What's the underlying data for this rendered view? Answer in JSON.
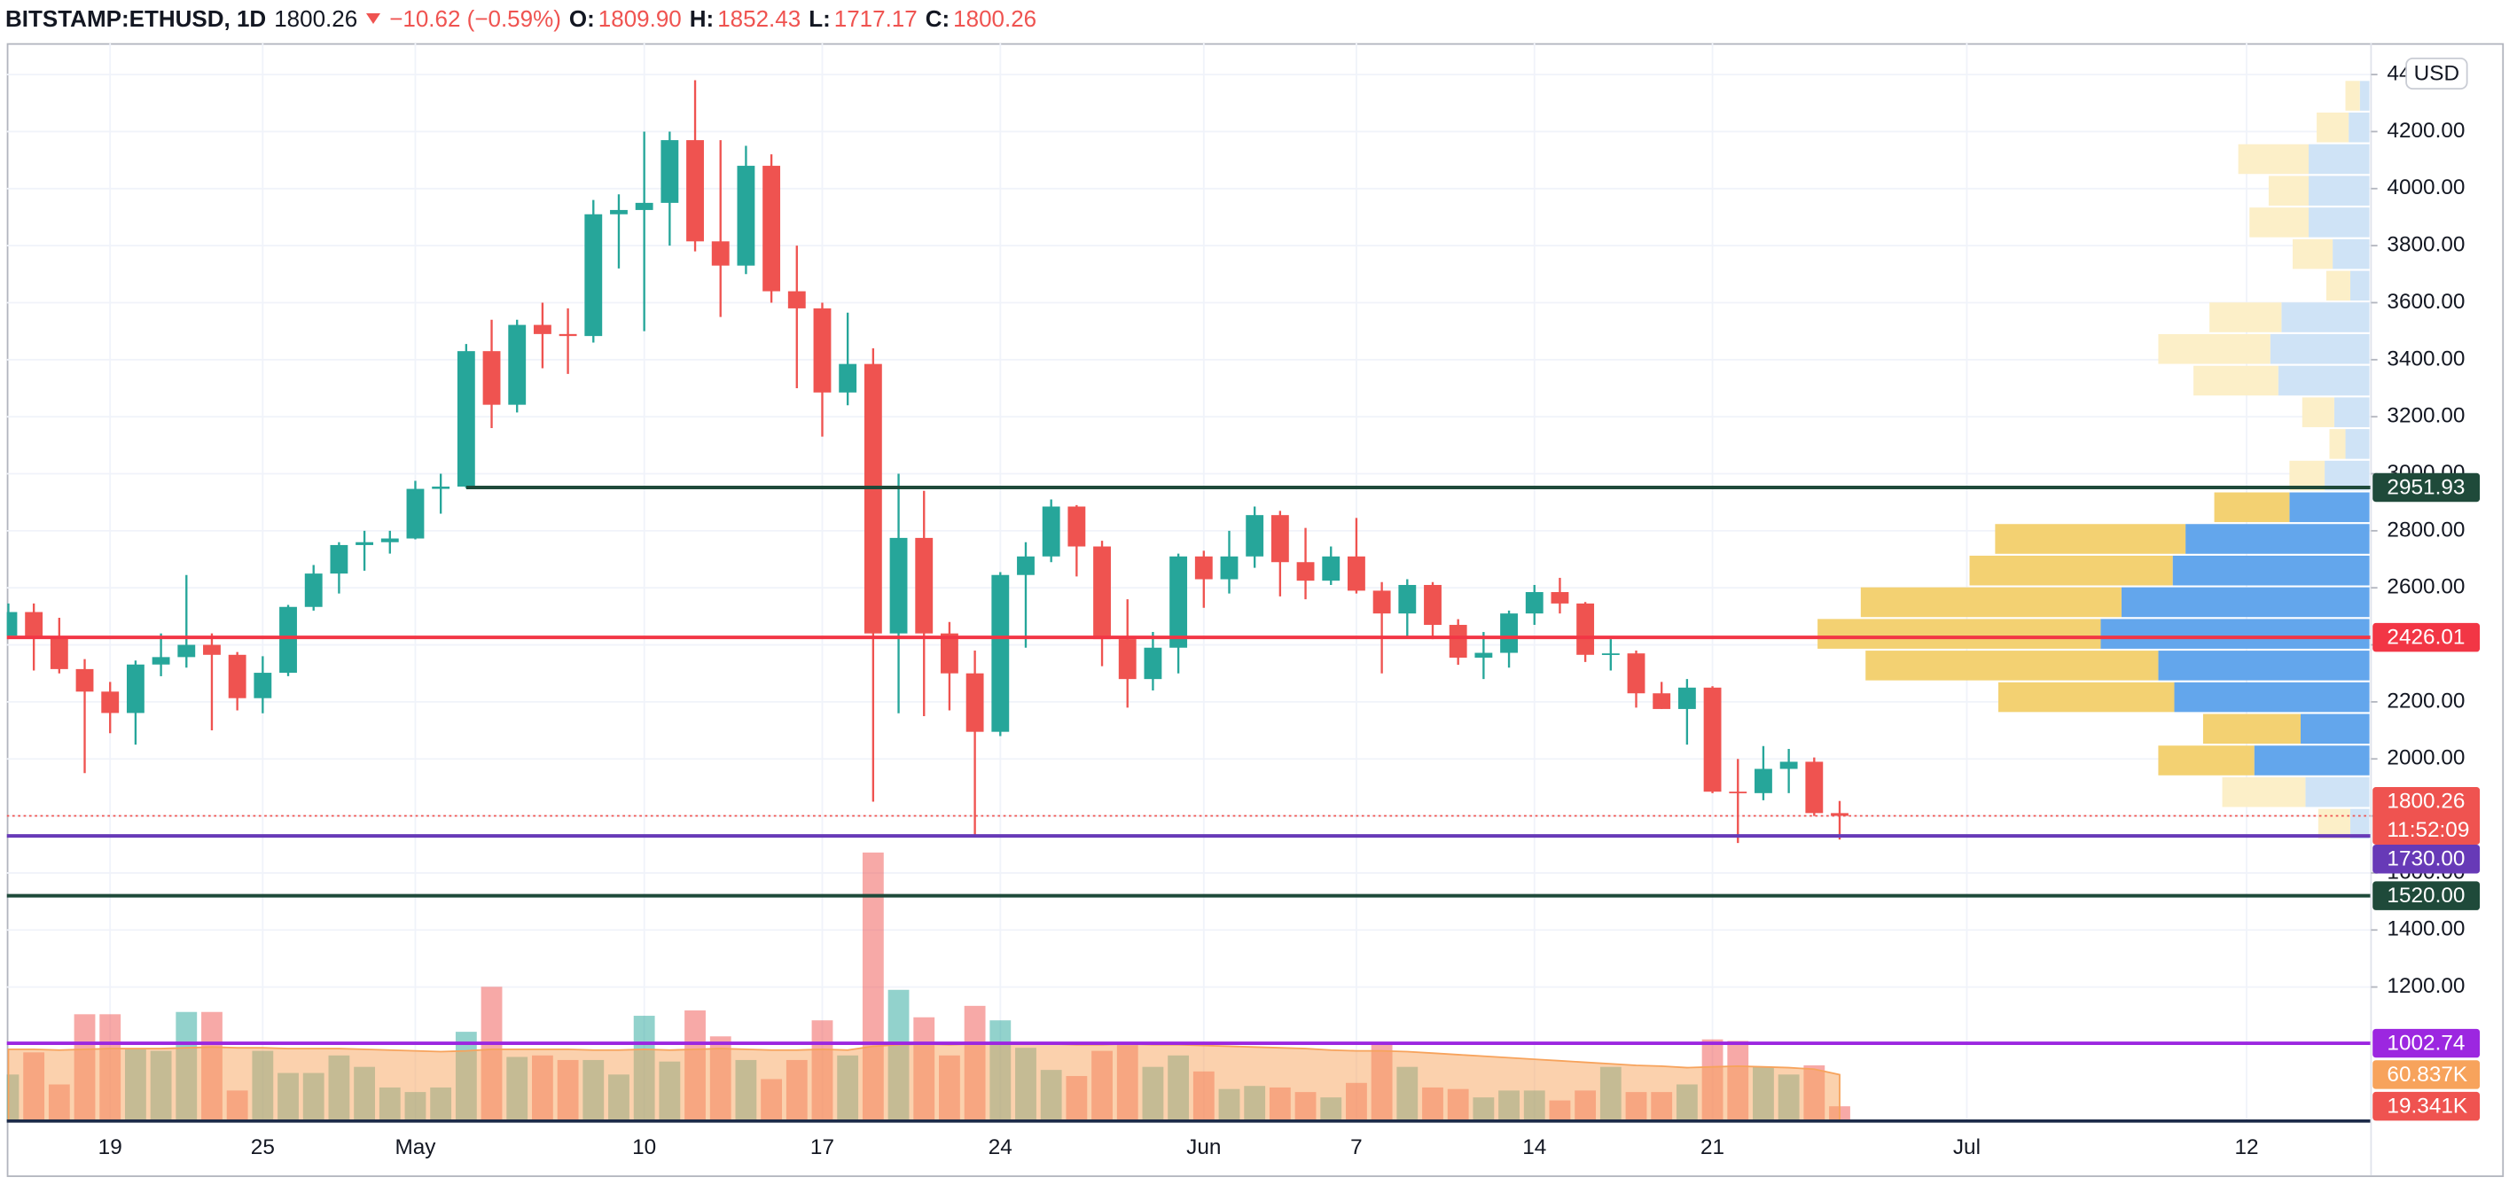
{
  "header": {
    "symbol": "BITSTAMP:ETHUSD, 1D",
    "last": "1800.26",
    "change": "−10.62 (−0.59%)",
    "ohlc": [
      {
        "label": "O:",
        "value": "1809.90"
      },
      {
        "label": "H:",
        "value": "1852.43"
      },
      {
        "label": "L:",
        "value": "1717.17"
      },
      {
        "label": "C:",
        "value": "1800.26"
      }
    ]
  },
  "chart_data": {
    "type": "candlestick",
    "categories": [
      null,
      null,
      null,
      null,
      "19",
      null,
      null,
      null,
      null,
      null,
      "25",
      null,
      null,
      null,
      null,
      null,
      "May",
      null,
      null,
      null,
      null,
      null,
      null,
      null,
      null,
      "10",
      null,
      null,
      null,
      null,
      null,
      null,
      "17",
      null,
      null,
      null,
      null,
      null,
      null,
      "24",
      null,
      null,
      null,
      null,
      null,
      null,
      null,
      "Jun",
      null,
      null,
      null,
      null,
      null,
      "7",
      null,
      null,
      null,
      null,
      null,
      null,
      "14",
      null,
      null,
      null,
      null,
      null,
      null,
      "21",
      null,
      null,
      null,
      null,
      null,
      null,
      null,
      null,
      null,
      "Jul",
      null,
      null,
      null,
      null,
      null,
      null,
      null,
      null,
      null,
      null,
      "12",
      null,
      null,
      null,
      null
    ],
    "open": [
      2432,
      2515,
      2422,
      2315,
      2236,
      2161,
      2331,
      2357,
      2400,
      2365,
      2213,
      2302,
      2533,
      2650,
      2750,
      2760,
      2773,
      2947,
      2955,
      3430,
      3242,
      3522,
      3490,
      3483,
      3910,
      3925,
      3950,
      4170,
      3815,
      3730,
      4080,
      3640,
      3580,
      3285,
      3385,
      2440,
      2775,
      2440,
      2300,
      2095,
      2645,
      2710,
      2885,
      2745,
      2420,
      2280,
      2390,
      2710,
      2630,
      2710,
      2855,
      2690,
      2625,
      2710,
      2590,
      2510,
      2610,
      2470,
      2355,
      2372,
      2510,
      2585,
      2545,
      2365,
      2370,
      2230,
      2175,
      2250,
      1885,
      1880,
      1965,
      1990,
      1809.9,
      null,
      null,
      null,
      null,
      null,
      null,
      null,
      null,
      null,
      null,
      null,
      null,
      null,
      null,
      null,
      null,
      null,
      null,
      null,
      null
    ],
    "high": [
      2545,
      2545,
      2495,
      2350,
      2270,
      2345,
      2440,
      2645,
      2440,
      2375,
      2360,
      2540,
      2680,
      2760,
      2800,
      2800,
      2975,
      3000,
      3455,
      3540,
      3540,
      3600,
      3580,
      3960,
      3980,
      4200,
      4200,
      4380,
      4170,
      4150,
      4120,
      3800,
      3600,
      3565,
      3440,
      3000,
      2940,
      2480,
      2380,
      2655,
      2760,
      2910,
      2890,
      2765,
      2560,
      2445,
      2720,
      2730,
      2800,
      2885,
      2870,
      2810,
      2745,
      2845,
      2620,
      2630,
      2620,
      2490,
      2445,
      2520,
      2610,
      2635,
      2550,
      2420,
      2380,
      2270,
      2280,
      2255,
      2000,
      2045,
      2035,
      2005,
      1852.43,
      null,
      null,
      null,
      null,
      null,
      null,
      null,
      null,
      null,
      null,
      null,
      null,
      null,
      null,
      null,
      null,
      null,
      null,
      null,
      null
    ],
    "low": [
      2420,
      2310,
      2300,
      1950,
      2090,
      2050,
      2290,
      2320,
      2100,
      2170,
      2160,
      2290,
      2520,
      2580,
      2660,
      2720,
      2770,
      2860,
      2950,
      3160,
      3215,
      3370,
      3350,
      3460,
      3720,
      3500,
      3800,
      3780,
      3550,
      3700,
      3600,
      3300,
      3130,
      3240,
      1850,
      2160,
      2150,
      2170,
      1730,
      2080,
      2390,
      2690,
      2640,
      2325,
      2180,
      2240,
      2300,
      2530,
      2580,
      2670,
      2570,
      2560,
      2610,
      2580,
      2300,
      2430,
      2420,
      2330,
      2280,
      2320,
      2470,
      2510,
      2340,
      2310,
      2180,
      2175,
      2050,
      1880,
      1705,
      1855,
      1880,
      1800,
      1717.17,
      null,
      null,
      null,
      null,
      null,
      null,
      null,
      null,
      null,
      null,
      null,
      null,
      null,
      null,
      null,
      null,
      null,
      null,
      null,
      null
    ],
    "close": [
      2515,
      2422,
      2315,
      2236,
      2161,
      2331,
      2357,
      2400,
      2365,
      2213,
      2302,
      2533,
      2650,
      2750,
      2760,
      2773,
      2947,
      2955,
      3430,
      3242,
      3522,
      3490,
      3483,
      3910,
      3925,
      3950,
      4170,
      3815,
      3730,
      4080,
      3640,
      3580,
      3285,
      3385,
      2440,
      2775,
      2440,
      2300,
      2095,
      2645,
      2710,
      2885,
      2745,
      2420,
      2280,
      2390,
      2710,
      2630,
      2710,
      2855,
      2690,
      2625,
      2710,
      2590,
      2510,
      2610,
      2470,
      2355,
      2372,
      2510,
      2585,
      2545,
      2365,
      2370,
      2230,
      2175,
      2250,
      1885,
      1880,
      1965,
      1990,
      1810,
      1800.26,
      null,
      null,
      null,
      null,
      null,
      null,
      null,
      null,
      null,
      null,
      null,
      null,
      null,
      null,
      null,
      null,
      null,
      null,
      null,
      null
    ],
    "up_color": "#26a69a",
    "down_color": "#ef5350",
    "ylim": [
      730,
      4510
    ],
    "yticks": [
      {
        "value": 4400,
        "label": "4400.00"
      },
      {
        "value": 4200,
        "label": "4200.00"
      },
      {
        "value": 4000,
        "label": "4000.00"
      },
      {
        "value": 3800,
        "label": "3800.00"
      },
      {
        "value": 3600,
        "label": "3600.00"
      },
      {
        "value": 3400,
        "label": "3400.00"
      },
      {
        "value": 3200,
        "label": "3200.00"
      },
      {
        "value": 3000,
        "label": "3000.00"
      },
      {
        "value": 2800,
        "label": "2800.00"
      },
      {
        "value": 2600,
        "label": "2600.00"
      },
      {
        "value": 2400,
        "label": "2400.00"
      },
      {
        "value": 2200,
        "label": "2200.00"
      },
      {
        "value": 2000,
        "label": "2000.00"
      },
      {
        "value": 1800,
        "label": "1800.00"
      },
      {
        "value": 1600,
        "label": "1600.00"
      },
      {
        "value": 1400,
        "label": "1400.00"
      },
      {
        "value": 1200,
        "label": "1200.00"
      }
    ],
    "grid": true,
    "currency": "USD",
    "last_price": {
      "value": 1800.26,
      "countdown": "11:52:09",
      "color": "#ef5350"
    },
    "levels": [
      {
        "value": 2951.93,
        "color": "#1f4a3a",
        "start": 18
      },
      {
        "value": 2426.01,
        "color": "#f23645"
      },
      {
        "value": 1730,
        "label": "1730.00",
        "color": "#673ab7"
      },
      {
        "value": 1520,
        "label": "1520.00",
        "color": "#1f4a3a"
      },
      {
        "value": 1002.74,
        "color": "#9c27e0"
      }
    ],
    "volume": {
      "values": [
        61000,
        90000,
        48000,
        140000,
        140000,
        94000,
        92000,
        143000,
        143000,
        40000,
        92000,
        63000,
        63000,
        86000,
        71000,
        44000,
        38000,
        44000,
        117000,
        176000,
        84000,
        86000,
        80000,
        80000,
        61000,
        138000,
        78000,
        145000,
        111000,
        80000,
        55000,
        80000,
        132000,
        86000,
        352000,
        172000,
        136000,
        86000,
        151000,
        132000,
        96000,
        67000,
        59000,
        92000,
        103000,
        71000,
        86000,
        65000,
        42000,
        46000,
        44000,
        38000,
        31000,
        50000,
        103000,
        71000,
        44000,
        42000,
        31000,
        40000,
        40000,
        27000,
        40000,
        71000,
        38000,
        38000,
        48000,
        107000,
        105000,
        71000,
        61000,
        73000,
        19341,
        null,
        null,
        null,
        null,
        null,
        null,
        null,
        null,
        null,
        null,
        null,
        null,
        null,
        null,
        null,
        null,
        null,
        null,
        null,
        null
      ],
      "ma": [
        94000,
        94000,
        93000,
        94000,
        95000,
        95000,
        95000,
        96000,
        97000,
        96000,
        96000,
        95000,
        95000,
        95000,
        94000,
        93000,
        92000,
        91000,
        92000,
        94000,
        94000,
        94000,
        94000,
        93000,
        93000,
        94000,
        93000,
        94000,
        95000,
        94000,
        93000,
        93000,
        94000,
        93000,
        98000,
        100000,
        101000,
        100000,
        101000,
        102000,
        102000,
        101000,
        100000,
        100000,
        101000,
        100000,
        100000,
        99000,
        98000,
        97000,
        96000,
        95000,
        93000,
        92000,
        92000,
        91000,
        89000,
        87000,
        85000,
        83000,
        81000,
        79000,
        77000,
        75000,
        73000,
        72000,
        70000,
        71000,
        72000,
        71000,
        70000,
        68000,
        60837,
        null,
        null,
        null,
        null,
        null,
        null,
        null,
        null,
        null,
        null,
        null,
        null,
        null,
        null,
        null,
        null,
        null,
        null,
        null,
        null
      ],
      "ylim": [
        0,
        1413000
      ],
      "ma_color": "#f7a35c",
      "badges": [
        {
          "value": 60837,
          "label": "60.837K",
          "color": "#f7a35c"
        },
        {
          "value": 19341,
          "label": "19.341K",
          "color": "#ef5350"
        }
      ]
    },
    "volume_profile": {
      "bins": [
        1717,
        1828,
        1939,
        2050,
        2161,
        2272,
        2383,
        2494,
        2605,
        2716,
        2827,
        2938,
        3049,
        3160,
        3271,
        3382,
        3493,
        3604,
        3715,
        3826,
        3937,
        4048,
        4159,
        4270,
        4381
      ],
      "up": [
        12,
        40,
        72,
        43,
        122,
        132,
        168,
        155,
        123,
        115,
        50,
        28,
        15,
        22,
        57,
        62,
        55,
        12,
        23,
        38,
        38,
        38,
        13,
        6
      ],
      "down": [
        20,
        52,
        60,
        61,
        110,
        183,
        177,
        163,
        127,
        119,
        47,
        22,
        10,
        20,
        53,
        70,
        45,
        15,
        25,
        37,
        25,
        44,
        20,
        9
      ],
      "xlim": [
        0,
        1478
      ],
      "value_area": [
        1939,
        2938
      ],
      "up_color": "#63a6ec",
      "down_color": "#f3d172",
      "up_color_outside": "#cfe3f6",
      "down_color_outside": "#fcefc8"
    }
  }
}
